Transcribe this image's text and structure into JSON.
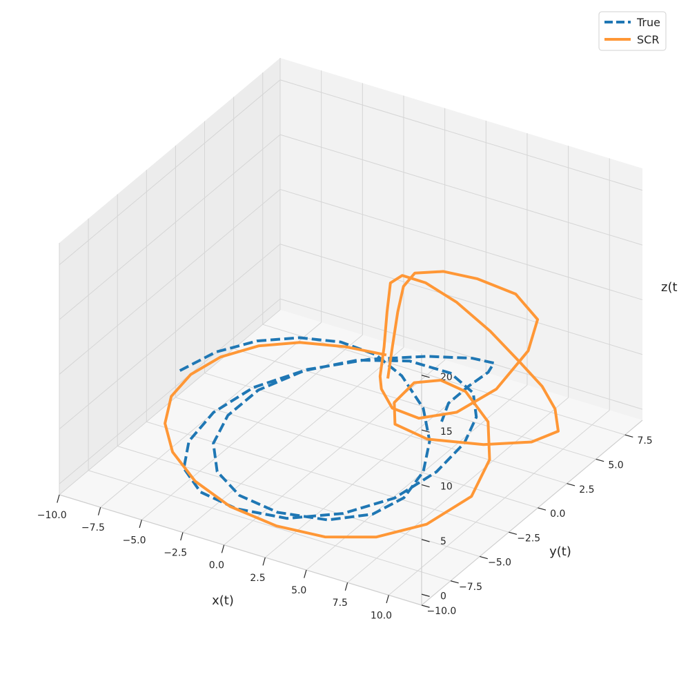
{
  "chart_data": {
    "type": "line",
    "projection": "3d",
    "xlabel": "x(t)",
    "ylabel": "y(t)",
    "zlabel": "z(t",
    "xlim": [
      -10,
      12
    ],
    "ylim": [
      -10,
      9
    ],
    "zlim": [
      -1,
      22
    ],
    "xticks": [
      "−10.0",
      "−7.5",
      "−5.0",
      "−2.5",
      "0.0",
      "2.5",
      "5.0",
      "7.5",
      "10.0"
    ],
    "yticks": [
      "−10.0",
      "−7.5",
      "−5.0",
      "−2.5",
      "0.0",
      "2.5",
      "5.0",
      "7.5"
    ],
    "zticks": [
      "0",
      "5",
      "10",
      "15",
      "20"
    ],
    "grid": true,
    "legend_position": "top-right",
    "series": [
      {
        "name": "True",
        "color": "#1f77b4",
        "style": "dashed",
        "points": [
          [
            -10.3,
            0.8,
            0.6
          ],
          [
            -9.4,
            2.6,
            1.1
          ],
          [
            -7.8,
            3.9,
            1.7
          ],
          [
            -5.8,
            4.7,
            2.2
          ],
          [
            -3.5,
            5.0,
            2.6
          ],
          [
            -1.1,
            4.6,
            2.9
          ],
          [
            1.2,
            3.6,
            2.9
          ],
          [
            3.7,
            1.9,
            2.6
          ],
          [
            5.5,
            -0.1,
            2.2
          ],
          [
            6.6,
            -2.2,
            1.8
          ],
          [
            6.9,
            -4.3,
            1.4
          ],
          [
            6.2,
            -6.0,
            1.1
          ],
          [
            4.4,
            -7.3,
            0.9
          ],
          [
            1.7,
            -7.8,
            0.8
          ],
          [
            -0.9,
            -7.4,
            0.8
          ],
          [
            -3.1,
            -6.2,
            0.9
          ],
          [
            -4.6,
            -4.4,
            1.2
          ],
          [
            -5.2,
            -2.3,
            1.6
          ],
          [
            -4.9,
            -0.1,
            2.1
          ],
          [
            -3.6,
            2.0,
            2.6
          ],
          [
            -1.5,
            3.6,
            3.1
          ],
          [
            1.1,
            4.4,
            3.5
          ],
          [
            3.8,
            4.1,
            3.9
          ],
          [
            6.1,
            2.8,
            4.3
          ],
          [
            7.7,
            0.8,
            4.6
          ],
          [
            8.6,
            -1.5,
            4.7
          ],
          [
            8.6,
            -3.9,
            4.2
          ],
          [
            7.6,
            -6.1,
            3.3
          ],
          [
            5.6,
            -7.7,
            2.4
          ],
          [
            2.9,
            -8.7,
            1.6
          ],
          [
            -0.1,
            -8.8,
            1.2
          ],
          [
            -2.7,
            -8.2,
            1.0
          ],
          [
            -4.7,
            -6.8,
            1.0
          ],
          [
            -5.8,
            -4.8,
            1.2
          ],
          [
            -6.0,
            -2.4,
            1.6
          ],
          [
            -5.2,
            -0.1,
            2.2
          ],
          [
            -3.4,
            2.0,
            2.8
          ],
          [
            -0.8,
            3.6,
            3.5
          ],
          [
            2.1,
            4.5,
            4.3
          ],
          [
            4.9,
            4.4,
            5.5
          ],
          [
            7.0,
            3.3,
            7.0
          ],
          [
            8.0,
            1.4,
            8.3
          ],
          [
            8.1,
            -0.4,
            8.7
          ],
          [
            7.7,
            -1.6,
            8.0
          ],
          [
            7.5,
            -1.9,
            6.5
          ]
        ]
      },
      {
        "name": "SCR",
        "color": "#ff9736",
        "style": "solid",
        "points": [
          [
            -2.0,
            6.8,
            0.5
          ],
          [
            -4.2,
            6.4,
            0.6
          ],
          [
            -6.4,
            5.6,
            0.7
          ],
          [
            -8.0,
            4.3,
            0.8
          ],
          [
            -9.1,
            2.6,
            0.8
          ],
          [
            -9.5,
            0.6,
            0.8
          ],
          [
            -9.2,
            -1.5,
            0.8
          ],
          [
            -8.1,
            -3.6,
            0.7
          ],
          [
            -6.3,
            -5.5,
            0.6
          ],
          [
            -3.8,
            -7.1,
            0.5
          ],
          [
            -0.9,
            -8.2,
            0.5
          ],
          [
            2.2,
            -8.6,
            0.5
          ],
          [
            5.0,
            -8.4,
            0.6
          ],
          [
            7.4,
            -7.4,
            0.8
          ],
          [
            9.2,
            -5.6,
            1.2
          ],
          [
            10.3,
            -3.3,
            2.2
          ],
          [
            10.2,
            -1.6,
            4.0
          ],
          [
            9.4,
            -0.6,
            6.2
          ],
          [
            7.9,
            -0.4,
            8.1
          ],
          [
            6.6,
            -0.7,
            8.8
          ],
          [
            5.2,
            -1.0,
            8.2
          ],
          [
            4.2,
            -1.3,
            6.2
          ],
          [
            4.1,
            -1.1,
            4.0
          ],
          [
            5.3,
            0.0,
            2.2
          ],
          [
            7.5,
            1.7,
            1.2
          ],
          [
            9.5,
            3.0,
            1.2
          ],
          [
            10.7,
            3.6,
            2.2
          ],
          [
            11.0,
            2.9,
            5.0
          ],
          [
            11.2,
            1.5,
            8.4
          ],
          [
            11.0,
            -0.1,
            11.9
          ],
          [
            10.1,
            -1.4,
            15.5
          ],
          [
            8.7,
            -2.3,
            18.3
          ],
          [
            7.1,
            -2.7,
            19.7
          ],
          [
            5.6,
            -2.6,
            19.6
          ],
          [
            4.6,
            -2.2,
            18.1
          ],
          [
            3.9,
            -1.5,
            14.5
          ],
          [
            3.3,
            -0.9,
            10.5
          ],
          [
            2.7,
            -0.4,
            7.1
          ],
          [
            2.5,
            0.0,
            5.5
          ],
          [
            3.3,
            -0.2,
            4.3
          ],
          [
            5.2,
            -0.6,
            4.6
          ],
          [
            7.5,
            -0.6,
            6.2
          ],
          [
            9.2,
            0.4,
            8.2
          ],
          [
            10.5,
            1.3,
            11.5
          ],
          [
            11.0,
            1.4,
            14.5
          ],
          [
            10.3,
            0.5,
            17.3
          ],
          [
            8.9,
            -0.8,
            19.2
          ],
          [
            7.4,
            -1.6,
            19.9
          ],
          [
            5.8,
            -1.8,
            19.2
          ],
          [
            4.9,
            -1.5,
            17.3
          ],
          [
            4.2,
            -1.0,
            14.2
          ],
          [
            3.6,
            -0.6,
            10.5
          ],
          [
            3.1,
            -0.3,
            7.0
          ]
        ]
      }
    ]
  }
}
